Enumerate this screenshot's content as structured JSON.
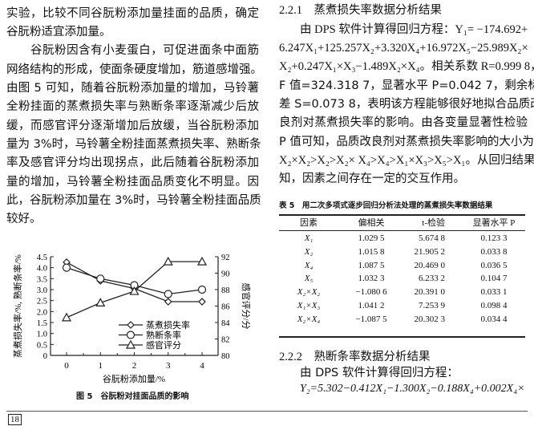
{
  "left_column": {
    "lines": [
      "实验，比较不同谷朊粉添加量挂面的品质，确定",
      "谷朊粉适宜添加量。",
      "谷朊粉因含有小麦蛋白，可促进面条中面筋",
      "网络结构的形成，使面条硬度增加，筋道感增强。",
      "由图 5 可知，随着谷朊粉添加量的增加，马铃薯",
      "全粉挂面的蒸煮损失率与熟断条率逐渐减少后放",
      "缓，而感官评分逐渐增加后放缓，当谷朊粉添加",
      "量为 3%时，马铃薯全粉挂面蒸煮损失率、熟断条",
      "率及感官评分均出现拐点，此后随着谷朊粉添加",
      "量的增加，马铃薯全粉挂面品质变化不明显。因",
      "此，谷朊粉添加量在 3%时，马铃薯全粉挂面品质",
      "较好。"
    ]
  },
  "figure": {
    "caption": "图 5　谷朊粉对挂面品质的影响"
  },
  "chart_data": {
    "type": "line",
    "x": [
      0,
      1,
      2,
      3,
      4
    ],
    "xlabel": "谷朊粉添加量/%",
    "ylabel": "蒸煮损失率/%, 熟断条率/%",
    "y2label": "感官评分/分",
    "xlim": [
      0,
      4
    ],
    "ylim": [
      0,
      4.5
    ],
    "y2lim": [
      80,
      92
    ],
    "xticks": [
      "0",
      "1",
      "2",
      "3",
      "4"
    ],
    "yticks": [
      "0",
      "0.5",
      "1.0",
      "1.5",
      "2.0",
      "2.5",
      "3.0",
      "3.5",
      "4.0",
      "4.5"
    ],
    "y2ticks": [
      "80",
      "82",
      "84",
      "86",
      "88",
      "90",
      "92"
    ],
    "grid": false,
    "legend": "lower-right",
    "series": [
      {
        "name": "蒸煮损失率",
        "axis": "left",
        "marker": "diamond",
        "values": [
          4.25,
          3.4,
          3.05,
          2.45,
          2.45
        ]
      },
      {
        "name": "熟断条率",
        "axis": "left",
        "marker": "circle",
        "values": [
          4.0,
          3.5,
          3.2,
          2.8,
          3.0
        ]
      },
      {
        "name": "感官评分",
        "axis": "right",
        "marker": "triangle",
        "values": [
          84.6,
          86.4,
          87.8,
          91.4,
          91.4
        ]
      }
    ]
  },
  "right_column": {
    "heading1": "2.2.1　蒸煮损失率数据分析结果",
    "lines": [
      "由 DPS 软件计算得回归方程：Y₁= −174.692+",
      "6.247X₁+125.257X₂+3.320X₄+16.972X₅−25.989X₂×",
      "X₂+0.247X₁×X₃−1.489X₂×X₄。相关系数 R=0.999 8，",
      "F 值=324.318 7，显著水平 P=0.042 7，剩余标准",
      "差 S=0.073 8，表明该方程能够很好地拟合品质改",
      "良剂对蒸煮损失率的影响。由各变量显著性检验",
      "P 值可知，品质改良剂对蒸煮损失率影响的大小为",
      "X₂×X₂>X₂>X₂× X₄>X₄>X₁×X₃>X₅>X₁。从回归结果可",
      "知，因素之间存在一定的交互作用。"
    ],
    "table": {
      "caption": "表 5　用二次多项式逐步回归分析法处理的蒸煮损失率数据结果",
      "headers": [
        "因素",
        "偏相关",
        "t-检验",
        "显著水平 P"
      ],
      "rows": [
        [
          "X₁",
          "1.029 5",
          "5.674 8",
          "0.123 3"
        ],
        [
          "X₂",
          "1.015 8",
          "21.905 2",
          "0.033 8"
        ],
        [
          "X₄",
          "1.087 5",
          "20.469 0",
          "0.036 5"
        ],
        [
          "X₅",
          "1.032 3",
          "6.233 2",
          "0.104 7"
        ],
        [
          "X₂×X₂",
          "−1.080 6",
          "20.391 0",
          "0.033 1"
        ],
        [
          "X₁×X₃",
          "1.041 2",
          "7.253 9",
          "0.098 4"
        ],
        [
          "X₂×X₄",
          "−1.087 5",
          "20.302 3",
          "0.034 4"
        ]
      ]
    },
    "heading2": "2.2.2　熟断条率数据分析结果",
    "lines2": [
      "由 DPS 软件计算得回归方程：",
      "Y₂=5.302−0.412X₁−1.300X₂−0.188X₄+0.002X₄×"
    ]
  },
  "footer": {
    "page_number": "18"
  }
}
